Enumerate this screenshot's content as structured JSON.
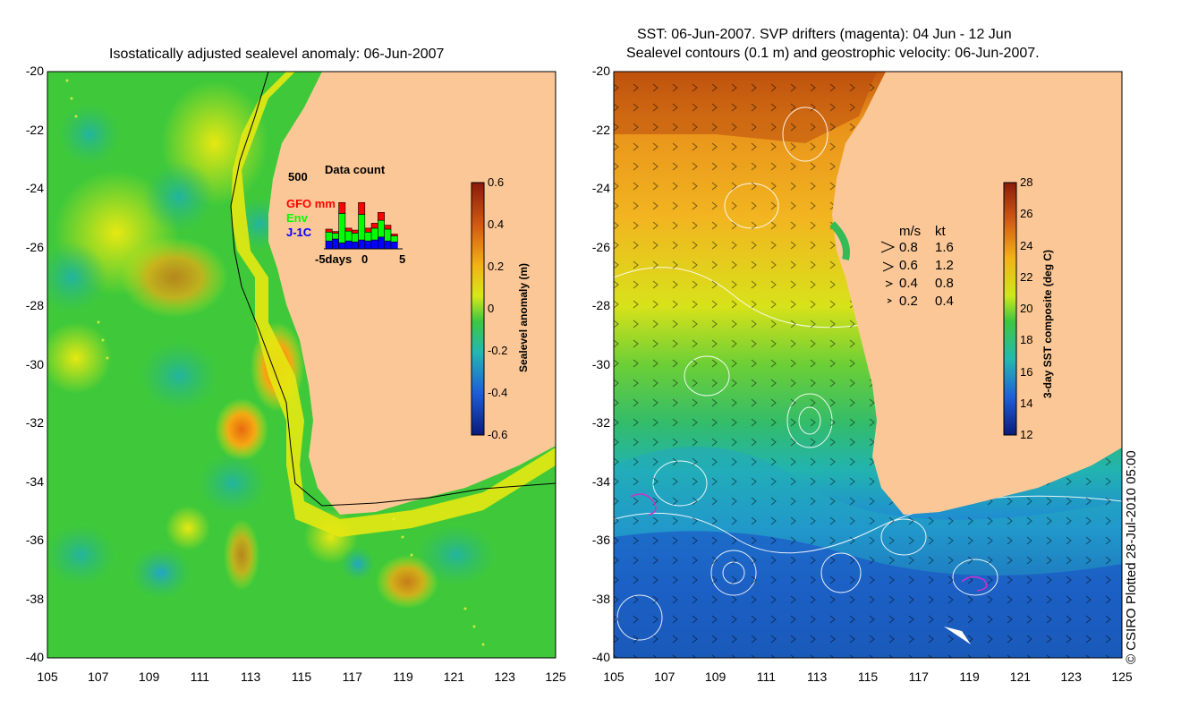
{
  "left_panel": {
    "title": "Isostatically adjusted sealevel anomaly: 06-Jun-2007",
    "y_ticks": [
      "-20",
      "-22",
      "-24",
      "-26",
      "-28",
      "-30",
      "-32",
      "-34",
      "-36",
      "-38",
      "-40"
    ],
    "x_ticks": [
      "105",
      "107",
      "109",
      "111",
      "113",
      "115",
      "117",
      "119",
      "121",
      "123",
      "125"
    ],
    "colorbar": {
      "label": "Sealevel anomaly (m)",
      "ticks": [
        "0.6",
        "0.4",
        "0.2",
        "0",
        "-0.2",
        "-0.4",
        "-0.6"
      ]
    },
    "inset": {
      "title": "Data count",
      "ymax_label": "500",
      "series": [
        {
          "name": "GFO mm",
          "color": "#ff0000"
        },
        {
          "name": "Env",
          "color": "#00ff00"
        },
        {
          "name": "J-1C",
          "color": "#0000ff"
        }
      ],
      "x_labels": [
        "-5days",
        "0",
        "5"
      ],
      "bars": [
        {
          "j1c": 40,
          "env": 45,
          "gfo": 15
        },
        {
          "j1c": 50,
          "env": 30,
          "gfo": 8
        },
        {
          "j1c": 30,
          "env": 150,
          "gfo": 55
        },
        {
          "j1c": 40,
          "env": 50,
          "gfo": 15
        },
        {
          "j1c": 35,
          "env": 45,
          "gfo": 15
        },
        {
          "j1c": 45,
          "env": 130,
          "gfo": 60
        },
        {
          "j1c": 40,
          "env": 45,
          "gfo": 20
        },
        {
          "j1c": 45,
          "env": 60,
          "gfo": 25
        },
        {
          "j1c": 60,
          "env": 85,
          "gfo": 40
        },
        {
          "j1c": 40,
          "env": 60,
          "gfo": 20
        },
        {
          "j1c": 35,
          "env": 30,
          "gfo": 10
        }
      ]
    }
  },
  "right_panel": {
    "title_line1": "SST: 06-Jun-2007. SVP drifters (magenta): 04 Jun - 12 Jun",
    "title_line2": "Sealevel contours (0.1 m) and geostrophic velocity: 06-Jun-2007.",
    "y_ticks": [
      "-20",
      "-22",
      "-24",
      "-26",
      "-28",
      "-30",
      "-32",
      "-34",
      "-36",
      "-38",
      "-40"
    ],
    "x_ticks": [
      "105",
      "107",
      "109",
      "111",
      "113",
      "115",
      "117",
      "119",
      "121",
      "123",
      "125"
    ],
    "velocity_legend": {
      "header_ms": "m/s",
      "header_kt": "kt",
      "rows": [
        {
          "ms": "0.8",
          "kt": "1.6"
        },
        {
          "ms": "0.6",
          "kt": "1.2"
        },
        {
          "ms": "0.4",
          "kt": "0.8"
        },
        {
          "ms": "0.2",
          "kt": "0.4"
        }
      ]
    },
    "colorbar": {
      "label": "3-day SST composite (deg C)",
      "ticks": [
        "28",
        "26",
        "24",
        "22",
        "20",
        "18",
        "16",
        "14",
        "12"
      ]
    }
  },
  "credit": "© CSIRO Plotted 28-Jul-2010 05:00",
  "colors": {
    "land": "#fbc796",
    "ssl_green": "#3fc93a",
    "ssl_yellow": "#e6e812",
    "ssl_orange": "#f59a12"
  }
}
